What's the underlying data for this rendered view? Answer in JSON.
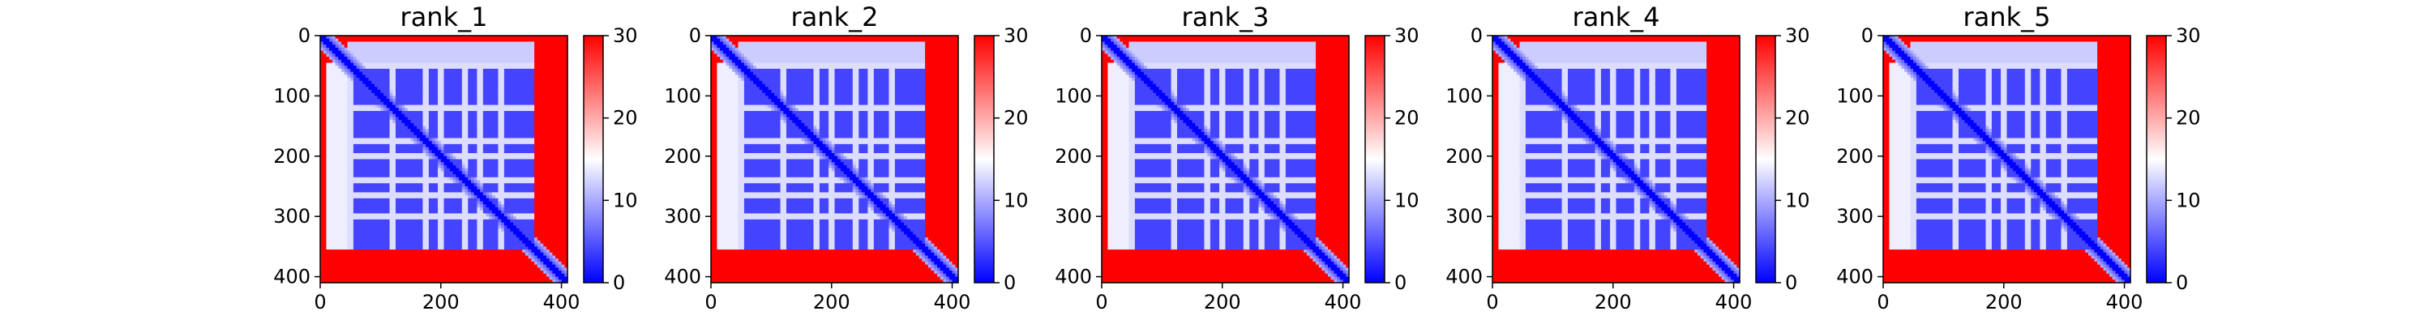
{
  "figure": {
    "background": "#ffffff"
  },
  "chart_data": [
    {
      "type": "heatmap",
      "title": "rank_1",
      "xlim": [
        0,
        410
      ],
      "ylim": [
        410,
        0
      ],
      "xticks": [
        "0",
        "200",
        "400"
      ],
      "yticks": [
        "0",
        "100",
        "200",
        "300",
        "400"
      ],
      "colorbar": {
        "range": [
          0,
          30
        ],
        "ticks": [
          "0",
          "10",
          "20",
          "30"
        ],
        "colormap": "bwr",
        "colors": [
          "#0000ff",
          "#ffffff",
          "#ff0000"
        ]
      },
      "structure": {
        "size": 410,
        "inner_block": [
          45,
          355
        ],
        "stripes": [
          50,
          120,
          175,
          200,
          240,
          265,
          300
        ],
        "diagonal": true
      }
    },
    {
      "type": "heatmap",
      "title": "rank_2",
      "xlim": [
        0,
        410
      ],
      "ylim": [
        410,
        0
      ],
      "xticks": [
        "0",
        "200",
        "400"
      ],
      "yticks": [
        "0",
        "100",
        "200",
        "300",
        "400"
      ],
      "colorbar": {
        "range": [
          0,
          30
        ],
        "ticks": [
          "0",
          "10",
          "20",
          "30"
        ],
        "colormap": "bwr",
        "colors": [
          "#0000ff",
          "#ffffff",
          "#ff0000"
        ]
      },
      "structure": {
        "size": 410,
        "inner_block": [
          45,
          355
        ],
        "stripes": [
          50,
          120,
          175,
          200,
          240,
          265,
          300
        ],
        "diagonal": true
      }
    },
    {
      "type": "heatmap",
      "title": "rank_3",
      "xlim": [
        0,
        410
      ],
      "ylim": [
        410,
        0
      ],
      "xticks": [
        "0",
        "200",
        "400"
      ],
      "yticks": [
        "0",
        "100",
        "200",
        "300",
        "400"
      ],
      "colorbar": {
        "range": [
          0,
          30
        ],
        "ticks": [
          "0",
          "10",
          "20",
          "30"
        ],
        "colormap": "bwr",
        "colors": [
          "#0000ff",
          "#ffffff",
          "#ff0000"
        ]
      },
      "structure": {
        "size": 410,
        "inner_block": [
          45,
          355
        ],
        "stripes": [
          50,
          120,
          175,
          200,
          240,
          265,
          300
        ],
        "diagonal": true
      }
    },
    {
      "type": "heatmap",
      "title": "rank_4",
      "xlim": [
        0,
        410
      ],
      "ylim": [
        410,
        0
      ],
      "xticks": [
        "0",
        "200",
        "400"
      ],
      "yticks": [
        "0",
        "100",
        "200",
        "300",
        "400"
      ],
      "colorbar": {
        "range": [
          0,
          30
        ],
        "ticks": [
          "0",
          "10",
          "20",
          "30"
        ],
        "colormap": "bwr",
        "colors": [
          "#0000ff",
          "#ffffff",
          "#ff0000"
        ]
      },
      "structure": {
        "size": 410,
        "inner_block": [
          45,
          355
        ],
        "stripes": [
          50,
          120,
          175,
          200,
          240,
          265,
          300
        ],
        "diagonal": true
      }
    },
    {
      "type": "heatmap",
      "title": "rank_5",
      "xlim": [
        0,
        410
      ],
      "ylim": [
        410,
        0
      ],
      "xticks": [
        "0",
        "200",
        "400"
      ],
      "yticks": [
        "0",
        "100",
        "200",
        "300",
        "400"
      ],
      "colorbar": {
        "range": [
          0,
          30
        ],
        "ticks": [
          "0",
          "10",
          "20",
          "30"
        ],
        "colormap": "bwr",
        "colors": [
          "#0000ff",
          "#ffffff",
          "#ff0000"
        ]
      },
      "structure": {
        "size": 410,
        "inner_block": [
          45,
          355
        ],
        "stripes": [
          50,
          120,
          175,
          200,
          240,
          265,
          300
        ],
        "diagonal": true
      }
    }
  ]
}
